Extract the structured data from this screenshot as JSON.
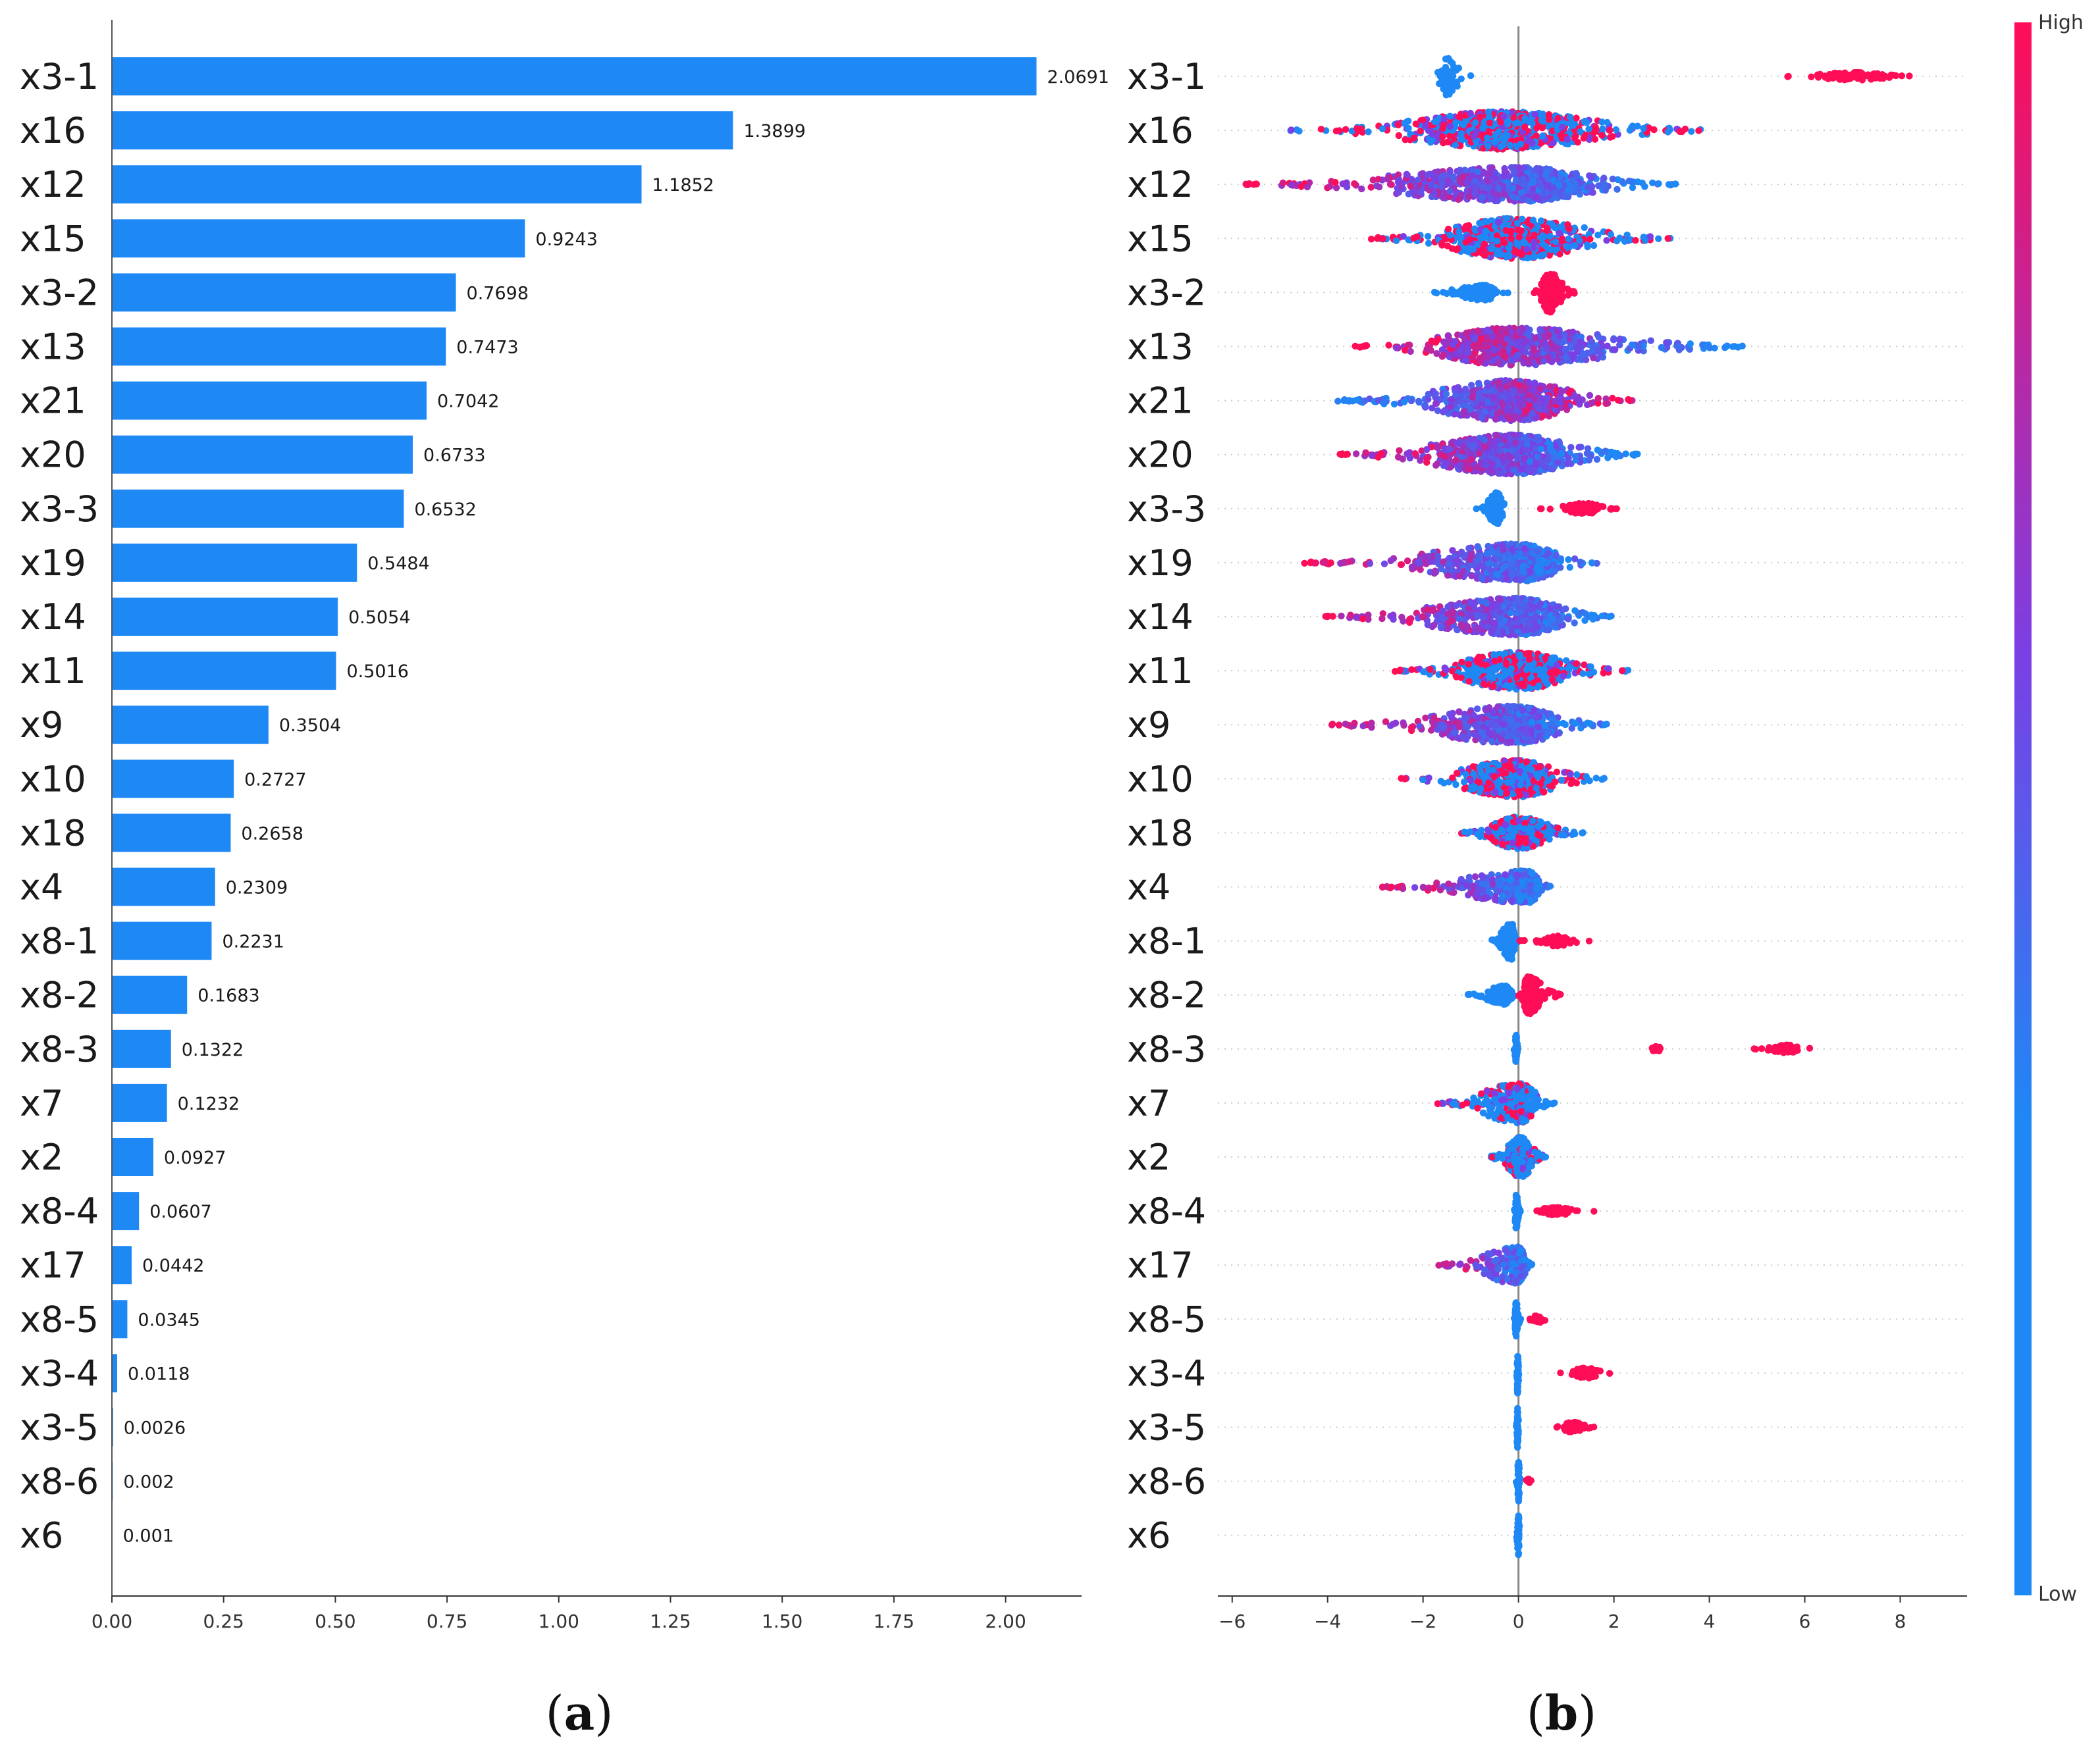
{
  "colors": {
    "bar": "#1e88f5",
    "low": "#1e88f5",
    "high": "#ff0d57",
    "mid": "#7b3fe4",
    "axis": "#333333",
    "zero_line": "#888888",
    "grid_dots": "#cccccc"
  },
  "chart_data": [
    {
      "type": "bar",
      "orientation": "horizontal",
      "panel": "(a)",
      "panel_letter": "a",
      "panel_open": "(",
      "panel_close": ")",
      "title": "",
      "xlabel": "",
      "ylabel": "",
      "categories": [
        "x3-1",
        "x16",
        "x12",
        "x15",
        "x3-2",
        "x13",
        "x21",
        "x20",
        "x3-3",
        "x19",
        "x14",
        "x11",
        "x9",
        "x10",
        "x18",
        "x4",
        "x8-1",
        "x8-2",
        "x8-3",
        "x7",
        "x2",
        "x8-4",
        "x17",
        "x8-5",
        "x3-4",
        "x3-5",
        "x8-6",
        "x6"
      ],
      "values": [
        2.0691,
        1.3899,
        1.1852,
        0.9243,
        0.7698,
        0.7473,
        0.7042,
        0.6733,
        0.6532,
        0.5484,
        0.5054,
        0.5016,
        0.3504,
        0.2727,
        0.2658,
        0.2309,
        0.2231,
        0.1683,
        0.1322,
        0.1232,
        0.0927,
        0.0607,
        0.0442,
        0.0345,
        0.0118,
        0.0026,
        0.002,
        0.001
      ],
      "value_labels": [
        "2.0691",
        "1.3899",
        "1.1852",
        "0.9243",
        "0.7698",
        "0.7473",
        "0.7042",
        "0.6733",
        "0.6532",
        "0.5484",
        "0.5054",
        "0.5016",
        "0.3504",
        "0.2727",
        "0.2658",
        "0.2309",
        "0.2231",
        "0.1683",
        "0.1322",
        "0.1232",
        "0.0927",
        "0.0607",
        "0.0442",
        "0.0345",
        "0.0118",
        "0.0026",
        "0.002",
        "0.001"
      ],
      "xlim": [
        0,
        2.17
      ],
      "xticks": [
        0,
        0.25,
        0.5,
        0.75,
        1.0,
        1.25,
        1.5,
        1.75,
        2.0
      ],
      "xtick_labels": [
        "0.00",
        "0.25",
        "0.50",
        "0.75",
        "1.00",
        "1.25",
        "1.50",
        "1.75",
        "2.00"
      ],
      "grid": false
    },
    {
      "type": "scatter",
      "subtype": "beeswarm",
      "panel": "(b)",
      "panel_letter": "b",
      "panel_open": "(",
      "panel_close": ")",
      "title": "",
      "xlabel": "",
      "ylabel": "",
      "categories": [
        "x3-1",
        "x16",
        "x12",
        "x15",
        "x3-2",
        "x13",
        "x21",
        "x20",
        "x3-3",
        "x19",
        "x14",
        "x11",
        "x9",
        "x10",
        "x18",
        "x4",
        "x8-1",
        "x8-2",
        "x8-3",
        "x7",
        "x2",
        "x8-4",
        "x17",
        "x8-5",
        "x3-4",
        "x3-5",
        "x8-6",
        "x6"
      ],
      "xlim": [
        -6.3,
        9.4
      ],
      "xticks": [
        -6,
        -4,
        -2,
        0,
        2,
        4,
        6,
        8
      ],
      "xtick_labels": [
        "−6",
        "−4",
        "−2",
        "0",
        "2",
        "4",
        "6",
        "8"
      ],
      "color_scale": {
        "low_label": "Low",
        "high_label": "High"
      },
      "series": [
        {
          "name": "x3-1",
          "clusters": [
            {
              "center": -1.5,
              "min": -1.8,
              "max": -0.9,
              "width": 0.7,
              "color": "low",
              "n": 60
            },
            {
              "center": 7.0,
              "min": 5.5,
              "max": 8.7,
              "width": 0.15,
              "color": "high",
              "n": 90
            }
          ]
        },
        {
          "name": "x16",
          "clusters": [
            {
              "center": -0.3,
              "min": -4.8,
              "max": 4.0,
              "width": 0.7,
              "color": "mix",
              "low_side": "left-right",
              "n": 700,
              "low_frac": 0.5
            }
          ]
        },
        {
          "name": "x12",
          "clusters": [
            {
              "center": 0.0,
              "min": -5.8,
              "max": 3.3,
              "width": 0.65,
              "color": "gradient",
              "high_side": "left",
              "n": 700
            }
          ]
        },
        {
          "name": "x15",
          "clusters": [
            {
              "center": -0.1,
              "min": -3.1,
              "max": 3.3,
              "width": 0.75,
              "color": "mix",
              "n": 600,
              "low_frac": 0.45
            }
          ]
        },
        {
          "name": "x3-2",
          "clusters": [
            {
              "center": -0.7,
              "min": -1.9,
              "max": -0.2,
              "width": 0.3,
              "color": "low",
              "n": 120
            },
            {
              "center": 0.65,
              "min": 0.3,
              "max": 1.2,
              "width": 0.75,
              "color": "high",
              "n": 200
            }
          ]
        },
        {
          "name": "x13",
          "clusters": [
            {
              "center": -0.1,
              "min": -3.5,
              "max": 4.7,
              "width": 0.7,
              "color": "gradient",
              "high_side": "left",
              "n": 650
            }
          ]
        },
        {
          "name": "x21",
          "clusters": [
            {
              "center": -0.1,
              "min": -3.8,
              "max": 2.5,
              "width": 0.75,
              "color": "gradient",
              "high_side": "right",
              "n": 650
            }
          ]
        },
        {
          "name": "x20",
          "clusters": [
            {
              "center": -0.1,
              "min": -3.8,
              "max": 2.5,
              "width": 0.75,
              "color": "gradient",
              "high_side": "left",
              "n": 650
            }
          ]
        },
        {
          "name": "x3-3",
          "clusters": [
            {
              "center": -0.45,
              "min": -0.9,
              "max": -0.2,
              "width": 0.6,
              "color": "low",
              "n": 110
            },
            {
              "center": 1.4,
              "min": 0.4,
              "max": 2.1,
              "width": 0.2,
              "color": "high",
              "n": 110
            }
          ]
        },
        {
          "name": "x19",
          "clusters": [
            {
              "center": 0.05,
              "min": -4.5,
              "max": 1.7,
              "width": 0.7,
              "color": "gradient",
              "high_side": "left",
              "n": 600
            }
          ]
        },
        {
          "name": "x14",
          "clusters": [
            {
              "center": 0.0,
              "min": -4.1,
              "max": 2.0,
              "width": 0.7,
              "color": "gradient",
              "high_side": "left",
              "n": 600
            }
          ]
        },
        {
          "name": "x11",
          "clusters": [
            {
              "center": 0.0,
              "min": -2.6,
              "max": 2.3,
              "width": 0.7,
              "color": "mix",
              "n": 600,
              "low_frac": 0.5
            }
          ]
        },
        {
          "name": "x9",
          "clusters": [
            {
              "center": -0.05,
              "min": -4.0,
              "max": 1.9,
              "width": 0.7,
              "color": "gradient",
              "high_side": "left",
              "n": 550
            }
          ]
        },
        {
          "name": "x10",
          "clusters": [
            {
              "center": -0.05,
              "min": -2.5,
              "max": 1.8,
              "width": 0.7,
              "color": "mix",
              "n": 450,
              "low_frac": 0.5
            }
          ]
        },
        {
          "name": "x18",
          "clusters": [
            {
              "center": 0.0,
              "min": -1.2,
              "max": 1.4,
              "width": 0.6,
              "color": "mix",
              "n": 400,
              "low_frac": 0.55
            }
          ]
        },
        {
          "name": "x4",
          "clusters": [
            {
              "center": 0.2,
              "min": -3.0,
              "max": 0.7,
              "width": 0.6,
              "color": "gradient",
              "high_side": "left",
              "n": 400
            }
          ]
        },
        {
          "name": "x8-1",
          "clusters": [
            {
              "center": -0.15,
              "min": -0.6,
              "max": 0.0,
              "width": 0.7,
              "color": "low",
              "n": 160
            },
            {
              "center": 0.8,
              "min": 0.0,
              "max": 1.6,
              "width": 0.2,
              "color": "high",
              "n": 80
            }
          ]
        },
        {
          "name": "x8-2",
          "clusters": [
            {
              "center": -0.3,
              "min": -1.1,
              "max": 0.0,
              "width": 0.35,
              "color": "low",
              "n": 150
            },
            {
              "center": 0.2,
              "min": 0.0,
              "max": 0.9,
              "width": 0.7,
              "color": "high",
              "n": 180
            }
          ]
        },
        {
          "name": "x8-3",
          "clusters": [
            {
              "center": -0.05,
              "min": -0.1,
              "max": 0.0,
              "width": 0.55,
              "color": "low",
              "n": 60
            },
            {
              "center": 2.9,
              "min": 2.7,
              "max": 3.1,
              "width": 0.12,
              "color": "high",
              "n": 20
            },
            {
              "center": 5.6,
              "min": 4.9,
              "max": 6.3,
              "width": 0.15,
              "color": "high",
              "n": 60
            }
          ]
        },
        {
          "name": "x7",
          "clusters": [
            {
              "center": 0.0,
              "min": -1.7,
              "max": 0.8,
              "width": 0.75,
              "color": "mix",
              "n": 350,
              "low_frac": 0.6
            }
          ]
        },
        {
          "name": "x2",
          "clusters": [
            {
              "center": 0.05,
              "min": -0.6,
              "max": 0.6,
              "width": 0.75,
              "color": "mix",
              "n": 300,
              "low_frac": 0.7
            }
          ]
        },
        {
          "name": "x8-4",
          "clusters": [
            {
              "center": -0.05,
              "min": -0.1,
              "max": 0.05,
              "width": 0.65,
              "color": "low",
              "n": 80
            },
            {
              "center": 0.8,
              "min": 0.1,
              "max": 1.6,
              "width": 0.15,
              "color": "high",
              "n": 70
            }
          ]
        },
        {
          "name": "x17",
          "clusters": [
            {
              "center": 0.0,
              "min": -1.7,
              "max": 0.3,
              "width": 0.7,
              "color": "gradient",
              "high_side": "left",
              "n": 200
            }
          ]
        },
        {
          "name": "x8-5",
          "clusters": [
            {
              "center": -0.05,
              "min": -0.1,
              "max": 0.05,
              "width": 0.65,
              "color": "low",
              "n": 60
            },
            {
              "center": 0.4,
              "min": 0.1,
              "max": 0.7,
              "width": 0.15,
              "color": "high",
              "n": 30
            }
          ]
        },
        {
          "name": "x3-4",
          "clusters": [
            {
              "center": -0.02,
              "min": -0.05,
              "max": 0.02,
              "width": 0.75,
              "color": "low",
              "n": 50
            },
            {
              "center": 1.4,
              "min": 0.8,
              "max": 2.0,
              "width": 0.2,
              "color": "high",
              "n": 50
            }
          ]
        },
        {
          "name": "x3-5",
          "clusters": [
            {
              "center": -0.02,
              "min": -0.05,
              "max": 0.02,
              "width": 0.75,
              "color": "low",
              "n": 50
            },
            {
              "center": 1.15,
              "min": 0.7,
              "max": 1.6,
              "width": 0.2,
              "color": "high",
              "n": 50
            }
          ]
        },
        {
          "name": "x8-6",
          "clusters": [
            {
              "center": 0.0,
              "min": -0.05,
              "max": 0.05,
              "width": 0.75,
              "color": "low",
              "n": 45
            },
            {
              "center": 0.2,
              "min": 0.1,
              "max": 0.3,
              "width": 0.1,
              "color": "high",
              "n": 6
            }
          ]
        },
        {
          "name": "x6",
          "clusters": [
            {
              "center": 0.0,
              "min": -0.05,
              "max": 0.05,
              "width": 0.75,
              "color": "low",
              "n": 45
            }
          ]
        }
      ]
    }
  ]
}
